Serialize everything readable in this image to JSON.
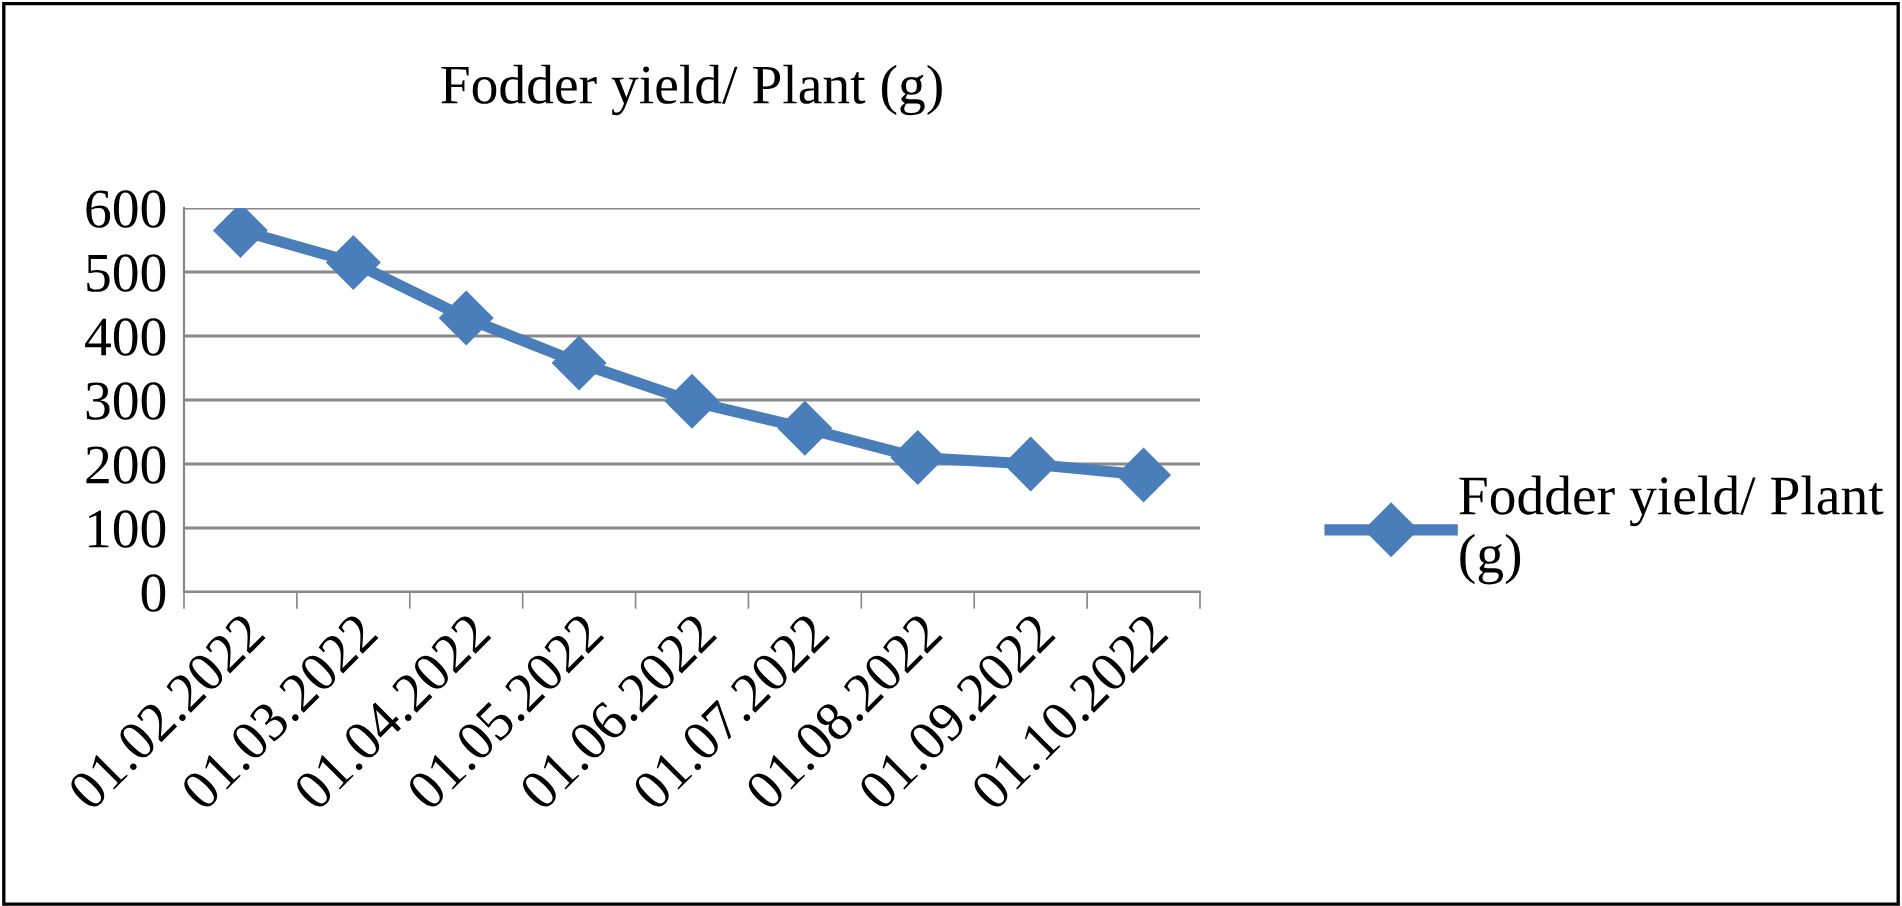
{
  "chart_data": {
    "type": "line",
    "title": "Fodder yield/ Plant (g)",
    "categories": [
      "01.02.2022",
      "01.03.2022",
      "01.04.2022",
      "01.05.2022",
      "01.06.2022",
      "01.07.2022",
      "01.08.2022",
      "01.09.2022",
      "01.10.2022"
    ],
    "series": [
      {
        "name": "Fodder yield/ Plant (g)",
        "color": "#4a7ebb",
        "values": [
          565,
          515,
          428,
          358,
          298,
          256,
          210,
          200,
          183
        ]
      }
    ],
    "ylim": [
      0,
      600
    ],
    "yticks": [
      0,
      100,
      200,
      300,
      400,
      500,
      600
    ],
    "grid": "y",
    "legend": "right",
    "marker": "diamond",
    "line_style": "solid"
  }
}
